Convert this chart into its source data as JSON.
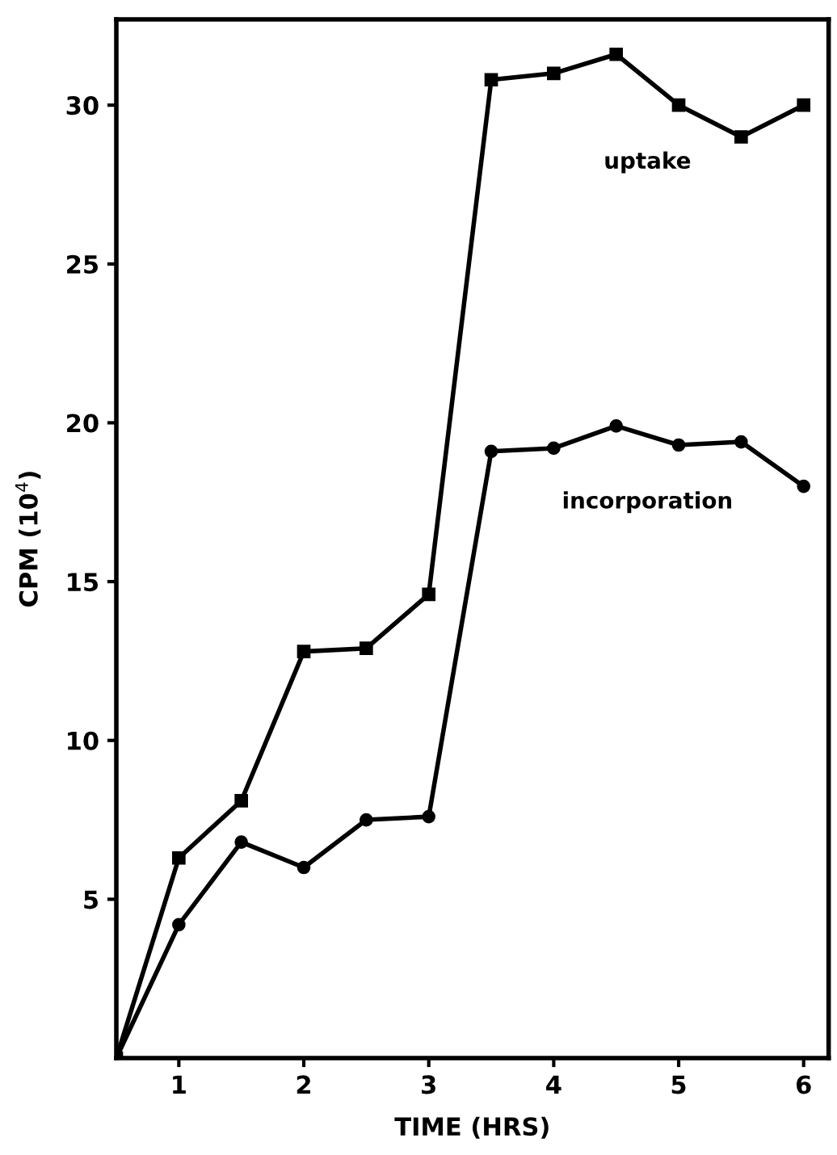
{
  "chart_data": {
    "type": "line",
    "xlabel": "TIME (HRS)",
    "ylabel": "CPM (10$^{4}$)",
    "x": [
      0.5,
      1,
      1.5,
      2,
      2.5,
      3,
      3.5,
      4,
      4.5,
      5,
      5.5,
      6
    ],
    "series": [
      {
        "name": "uptake",
        "color": "#000000",
        "marker": "square",
        "values": [
          0,
          6.3,
          8.1,
          12.8,
          12.9,
          14.6,
          30.8,
          31.0,
          31.6,
          30.0,
          29.0,
          30.0
        ]
      },
      {
        "name": "incorporation",
        "color": "#000000",
        "marker": "circle",
        "values": [
          0,
          4.2,
          6.8,
          6.0,
          7.5,
          7.6,
          19.1,
          19.2,
          19.9,
          19.3,
          19.4,
          18.0
        ]
      }
    ],
    "xlim": [
      0.5,
      6.2
    ],
    "ylim": [
      0,
      32.7
    ],
    "xticks": [
      1,
      2,
      3,
      4,
      5,
      6
    ],
    "yticks": [
      5,
      10,
      15,
      20,
      25,
      30
    ],
    "grid": false,
    "legend": false,
    "line_style": "solid"
  }
}
